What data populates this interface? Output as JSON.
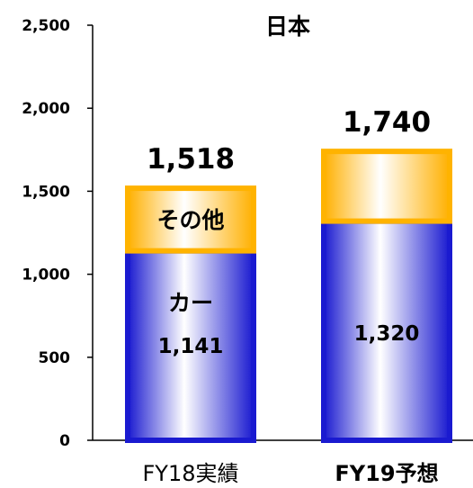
{
  "chart_data": {
    "type": "bar",
    "stacked": true,
    "title": "日本",
    "categories": [
      "FY18実績",
      "FY19予想"
    ],
    "series": [
      {
        "name": "カー",
        "values": [
          1141,
          1320
        ],
        "value_labels": [
          "1,141",
          "1,320"
        ],
        "color": "#1f1fd6"
      },
      {
        "name": "その他",
        "values": [
          377,
          420
        ],
        "color": "#ffb300"
      }
    ],
    "totals": [
      1518,
      1740
    ],
    "total_labels": [
      "1,518",
      "1,740"
    ],
    "ylim": [
      0,
      2500
    ],
    "yticks": [
      0,
      500,
      1000,
      1500,
      2000,
      2500
    ],
    "ytick_labels": [
      "0",
      "500",
      "1,000",
      "1,500",
      "2,000",
      "2,500"
    ],
    "grid": false,
    "legend": "none"
  }
}
